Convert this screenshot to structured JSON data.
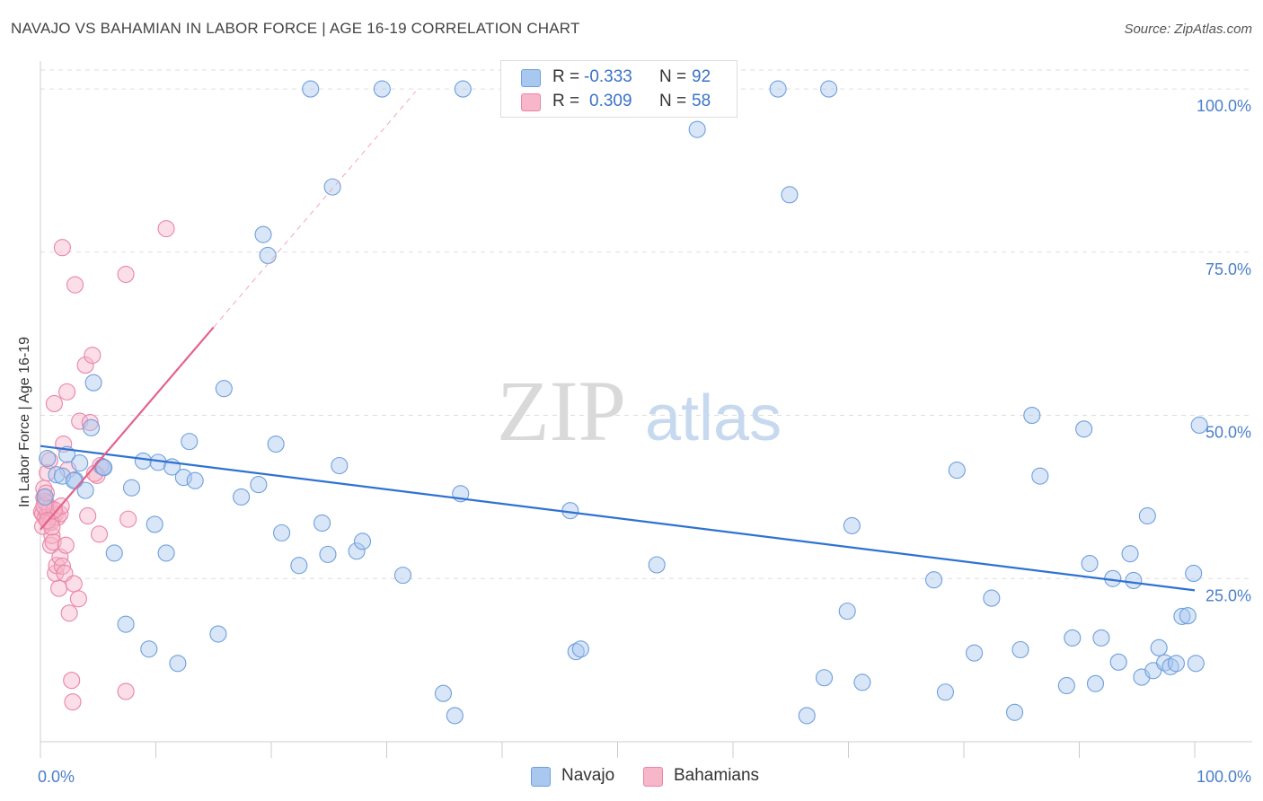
{
  "title": "NAVAJO VS BAHAMIAN IN LABOR FORCE | AGE 16-19 CORRELATION CHART",
  "source": "Source: ZipAtlas.com",
  "watermark": {
    "zip": "ZIP",
    "atlas": "atlas"
  },
  "legend": {
    "navajo": {
      "r_label": "R =",
      "r_value": "-0.333",
      "n_label": "N =",
      "n_value": "92"
    },
    "bahamians": {
      "r_label": "R =",
      "r_value": "0.309",
      "n_label": "N =",
      "n_value": "58"
    }
  },
  "bottom_legend": {
    "navajo": "Navajo",
    "bahamians": "Bahamians"
  },
  "colors": {
    "navajo_fill": "#a9c8f0",
    "navajo_stroke": "#6f9fdc",
    "navajo_line": "#2f72d0",
    "bahamian_fill": "#f7b6c9",
    "bahamian_stroke": "#ea84a6",
    "bahamian_line": "#e4628c",
    "grid": "#dddddd",
    "tick_text": "#4a7fc8"
  },
  "chart_data": {
    "type": "scatter",
    "title": "NAVAJO VS BAHAMIAN IN LABOR FORCE | AGE 16-19 CORRELATION CHART",
    "xlabel": "",
    "ylabel": "In Labor Force | Age 16-19",
    "xlim": [
      0,
      100
    ],
    "ylim": [
      0,
      104
    ],
    "x_tick_labels": [
      "0.0%",
      "100.0%"
    ],
    "y_ticks": [
      25,
      50,
      75,
      100
    ],
    "y_tick_labels": [
      "25.0%",
      "50.0%",
      "75.0%",
      "100.0%"
    ],
    "series": [
      {
        "name": "Navajo",
        "r": -0.333,
        "n": 92,
        "trend": {
          "x": [
            0,
            100
          ],
          "y": [
            45.3,
            23.2
          ]
        },
        "points": [
          {
            "x": 0.4,
            "y": 37.5
          },
          {
            "x": 0.6,
            "y": 43.4
          },
          {
            "x": 1.4,
            "y": 40.9
          },
          {
            "x": 2.3,
            "y": 44.0
          },
          {
            "x": 3.0,
            "y": 40.1
          },
          {
            "x": 3.4,
            "y": 42.7
          },
          {
            "x": 3.9,
            "y": 38.5
          },
          {
            "x": 4.4,
            "y": 48.1
          },
          {
            "x": 4.6,
            "y": 55.0
          },
          {
            "x": 5.4,
            "y": 42.1
          },
          {
            "x": 6.4,
            "y": 28.9
          },
          {
            "x": 7.4,
            "y": 18.0
          },
          {
            "x": 7.9,
            "y": 38.9
          },
          {
            "x": 8.9,
            "y": 43.0
          },
          {
            "x": 9.4,
            "y": 14.2
          },
          {
            "x": 9.9,
            "y": 33.3
          },
          {
            "x": 10.2,
            "y": 42.8
          },
          {
            "x": 10.9,
            "y": 28.9
          },
          {
            "x": 11.4,
            "y": 42.1
          },
          {
            "x": 11.9,
            "y": 12.0
          },
          {
            "x": 12.4,
            "y": 40.5
          },
          {
            "x": 12.9,
            "y": 46.0
          },
          {
            "x": 13.4,
            "y": 40.0
          },
          {
            "x": 15.9,
            "y": 54.1
          },
          {
            "x": 15.4,
            "y": 16.5
          },
          {
            "x": 17.4,
            "y": 37.5
          },
          {
            "x": 18.9,
            "y": 39.4
          },
          {
            "x": 19.3,
            "y": 77.7
          },
          {
            "x": 19.7,
            "y": 74.5
          },
          {
            "x": 20.4,
            "y": 45.6
          },
          {
            "x": 20.9,
            "y": 32.0
          },
          {
            "x": 22.4,
            "y": 27.0
          },
          {
            "x": 23.4,
            "y": 100.0
          },
          {
            "x": 24.4,
            "y": 33.5
          },
          {
            "x": 24.9,
            "y": 28.7
          },
          {
            "x": 25.3,
            "y": 85.0
          },
          {
            "x": 25.9,
            "y": 42.3
          },
          {
            "x": 27.4,
            "y": 29.2
          },
          {
            "x": 27.9,
            "y": 30.7
          },
          {
            "x": 29.6,
            "y": 100.0
          },
          {
            "x": 31.4,
            "y": 25.5
          },
          {
            "x": 34.9,
            "y": 7.4
          },
          {
            "x": 35.9,
            "y": 4.0
          },
          {
            "x": 36.4,
            "y": 38.0
          },
          {
            "x": 36.6,
            "y": 100.0
          },
          {
            "x": 46.4,
            "y": 13.8
          },
          {
            "x": 46.8,
            "y": 14.2
          },
          {
            "x": 45.9,
            "y": 35.4
          },
          {
            "x": 53.4,
            "y": 27.1
          },
          {
            "x": 56.9,
            "y": 93.8
          },
          {
            "x": 63.9,
            "y": 100.0
          },
          {
            "x": 64.9,
            "y": 83.8
          },
          {
            "x": 66.4,
            "y": 4.0
          },
          {
            "x": 67.9,
            "y": 9.8
          },
          {
            "x": 69.9,
            "y": 20.0
          },
          {
            "x": 70.3,
            "y": 33.1
          },
          {
            "x": 71.2,
            "y": 9.1
          },
          {
            "x": 68.3,
            "y": 100.0
          },
          {
            "x": 77.4,
            "y": 24.8
          },
          {
            "x": 78.4,
            "y": 7.6
          },
          {
            "x": 79.4,
            "y": 41.6
          },
          {
            "x": 80.9,
            "y": 13.6
          },
          {
            "x": 82.4,
            "y": 22.0
          },
          {
            "x": 84.4,
            "y": 4.5
          },
          {
            "x": 84.9,
            "y": 14.1
          },
          {
            "x": 85.9,
            "y": 50.0
          },
          {
            "x": 86.6,
            "y": 40.7
          },
          {
            "x": 88.9,
            "y": 8.6
          },
          {
            "x": 89.4,
            "y": 15.9
          },
          {
            "x": 90.4,
            "y": 47.9
          },
          {
            "x": 90.9,
            "y": 27.3
          },
          {
            "x": 91.4,
            "y": 8.9
          },
          {
            "x": 91.9,
            "y": 15.9
          },
          {
            "x": 92.9,
            "y": 25.0
          },
          {
            "x": 93.4,
            "y": 12.2
          },
          {
            "x": 94.4,
            "y": 28.8
          },
          {
            "x": 94.7,
            "y": 24.7
          },
          {
            "x": 95.4,
            "y": 9.9
          },
          {
            "x": 95.9,
            "y": 34.6
          },
          {
            "x": 96.4,
            "y": 10.9
          },
          {
            "x": 96.9,
            "y": 14.4
          },
          {
            "x": 97.4,
            "y": 12.1
          },
          {
            "x": 97.9,
            "y": 11.5
          },
          {
            "x": 98.4,
            "y": 12.0
          },
          {
            "x": 98.9,
            "y": 19.2
          },
          {
            "x": 99.4,
            "y": 19.3
          },
          {
            "x": 99.9,
            "y": 25.8
          },
          {
            "x": 100.1,
            "y": 12.0
          },
          {
            "x": 100.4,
            "y": 48.5
          },
          {
            "x": 1.9,
            "y": 40.7
          },
          {
            "x": 2.9,
            "y": 40.0
          },
          {
            "x": 5.5,
            "y": 42.0
          }
        ]
      },
      {
        "name": "Bahamians",
        "r": 0.309,
        "n": 58,
        "trend": {
          "x": [
            0,
            15
          ],
          "y": [
            32.5,
            63.5
          ]
        },
        "trend_extrapolated": {
          "x": [
            15,
            32.5
          ],
          "y": [
            63.5,
            99.6
          ]
        },
        "points": [
          {
            "x": 0.1,
            "y": 35.2
          },
          {
            "x": 0.2,
            "y": 34.9
          },
          {
            "x": 0.3,
            "y": 37.4
          },
          {
            "x": 0.3,
            "y": 38.8
          },
          {
            "x": 0.4,
            "y": 34.3
          },
          {
            "x": 0.5,
            "y": 36.5
          },
          {
            "x": 0.6,
            "y": 35.0
          },
          {
            "x": 0.6,
            "y": 41.2
          },
          {
            "x": 0.7,
            "y": 33.7
          },
          {
            "x": 0.8,
            "y": 43.1
          },
          {
            "x": 0.8,
            "y": 35.8
          },
          {
            "x": 0.9,
            "y": 30.1
          },
          {
            "x": 1.0,
            "y": 31.6
          },
          {
            "x": 1.1,
            "y": 34.4
          },
          {
            "x": 1.1,
            "y": 30.6
          },
          {
            "x": 1.2,
            "y": 51.8
          },
          {
            "x": 1.3,
            "y": 34.9
          },
          {
            "x": 1.3,
            "y": 25.8
          },
          {
            "x": 1.4,
            "y": 27.0
          },
          {
            "x": 1.5,
            "y": 34.4
          },
          {
            "x": 1.6,
            "y": 23.5
          },
          {
            "x": 1.7,
            "y": 28.3
          },
          {
            "x": 1.7,
            "y": 34.9
          },
          {
            "x": 1.8,
            "y": 36.1
          },
          {
            "x": 1.9,
            "y": 75.7
          },
          {
            "x": 1.9,
            "y": 26.9
          },
          {
            "x": 2.0,
            "y": 45.6
          },
          {
            "x": 2.1,
            "y": 25.8
          },
          {
            "x": 2.2,
            "y": 30.1
          },
          {
            "x": 2.3,
            "y": 53.6
          },
          {
            "x": 2.4,
            "y": 41.7
          },
          {
            "x": 2.5,
            "y": 19.7
          },
          {
            "x": 2.7,
            "y": 9.4
          },
          {
            "x": 2.8,
            "y": 6.1
          },
          {
            "x": 2.9,
            "y": 24.2
          },
          {
            "x": 3.0,
            "y": 70.0
          },
          {
            "x": 3.3,
            "y": 21.9
          },
          {
            "x": 3.4,
            "y": 49.1
          },
          {
            "x": 3.9,
            "y": 57.7
          },
          {
            "x": 4.1,
            "y": 34.6
          },
          {
            "x": 4.3,
            "y": 48.9
          },
          {
            "x": 4.5,
            "y": 59.2
          },
          {
            "x": 4.9,
            "y": 40.8
          },
          {
            "x": 5.1,
            "y": 31.8
          },
          {
            "x": 5.2,
            "y": 42.3
          },
          {
            "x": 7.4,
            "y": 71.6
          },
          {
            "x": 7.4,
            "y": 7.7
          },
          {
            "x": 7.6,
            "y": 34.1
          },
          {
            "x": 10.9,
            "y": 78.6
          },
          {
            "x": 0.2,
            "y": 33.0
          },
          {
            "x": 0.4,
            "y": 36.8
          },
          {
            "x": 0.9,
            "y": 33.6
          },
          {
            "x": 1.2,
            "y": 35.5
          },
          {
            "x": 0.3,
            "y": 36.1
          },
          {
            "x": 0.6,
            "y": 33.9
          },
          {
            "x": 1.0,
            "y": 32.9
          },
          {
            "x": 4.7,
            "y": 41.1
          },
          {
            "x": 0.5,
            "y": 38.1
          }
        ]
      }
    ]
  }
}
